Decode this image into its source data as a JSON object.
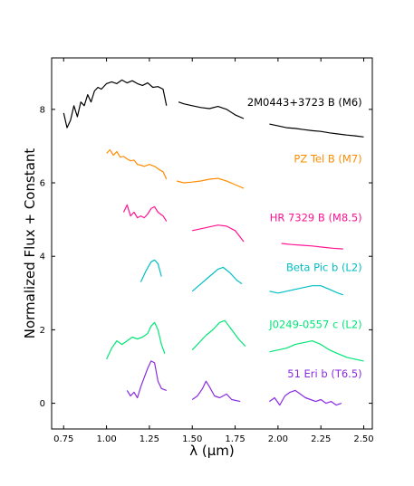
{
  "chart_data": {
    "type": "line",
    "title": "",
    "xlabel": "λ (μm)",
    "ylabel": "Normalized Flux + Constant",
    "xlim": [
      0.68,
      2.55
    ],
    "ylim": [
      -0.7,
      9.4
    ],
    "xticks": [
      "0.75",
      "1.00",
      "1.25",
      "1.50",
      "1.75",
      "2.00",
      "2.25",
      "2.50"
    ],
    "yticks": [
      "0",
      "2",
      "4",
      "6",
      "8"
    ],
    "grid": false,
    "legend": "inline labels at right of each spectrum",
    "series": [
      {
        "name": "2M0443+3723 B (M6)",
        "color": "#000000",
        "label_at": [
          2.49,
          8.1
        ],
        "segments": [
          [
            [
              0.75,
              7.9
            ],
            [
              0.77,
              7.5
            ],
            [
              0.79,
              7.7
            ],
            [
              0.81,
              8.1
            ],
            [
              0.83,
              7.8
            ],
            [
              0.85,
              8.2
            ],
            [
              0.87,
              8.1
            ],
            [
              0.89,
              8.4
            ],
            [
              0.91,
              8.2
            ],
            [
              0.93,
              8.5
            ],
            [
              0.95,
              8.6
            ],
            [
              0.97,
              8.55
            ],
            [
              1.0,
              8.7
            ],
            [
              1.03,
              8.75
            ],
            [
              1.06,
              8.7
            ],
            [
              1.09,
              8.8
            ],
            [
              1.12,
              8.72
            ],
            [
              1.15,
              8.78
            ],
            [
              1.18,
              8.7
            ],
            [
              1.21,
              8.65
            ],
            [
              1.24,
              8.72
            ],
            [
              1.27,
              8.6
            ],
            [
              1.3,
              8.62
            ],
            [
              1.33,
              8.55
            ],
            [
              1.35,
              8.1
            ]
          ],
          [
            [
              1.42,
              8.2
            ],
            [
              1.45,
              8.15
            ],
            [
              1.5,
              8.1
            ],
            [
              1.55,
              8.05
            ],
            [
              1.6,
              8.02
            ],
            [
              1.65,
              8.08
            ],
            [
              1.7,
              8.0
            ],
            [
              1.75,
              7.85
            ],
            [
              1.8,
              7.75
            ]
          ],
          [
            [
              1.95,
              7.6
            ],
            [
              2.0,
              7.55
            ],
            [
              2.05,
              7.5
            ],
            [
              2.1,
              7.48
            ],
            [
              2.15,
              7.45
            ],
            [
              2.2,
              7.42
            ],
            [
              2.25,
              7.4
            ],
            [
              2.3,
              7.36
            ],
            [
              2.35,
              7.33
            ],
            [
              2.4,
              7.3
            ],
            [
              2.45,
              7.28
            ],
            [
              2.5,
              7.25
            ]
          ]
        ]
      },
      {
        "name": "PZ Tel B (M7)",
        "color": "#ff8c00",
        "label_at": [
          2.49,
          6.55
        ],
        "segments": [
          [
            [
              1.0,
              6.8
            ],
            [
              1.02,
              6.9
            ],
            [
              1.04,
              6.75
            ],
            [
              1.06,
              6.85
            ],
            [
              1.08,
              6.7
            ],
            [
              1.1,
              6.72
            ],
            [
              1.12,
              6.65
            ],
            [
              1.14,
              6.6
            ],
            [
              1.16,
              6.62
            ],
            [
              1.18,
              6.5
            ],
            [
              1.2,
              6.48
            ],
            [
              1.22,
              6.45
            ],
            [
              1.25,
              6.5
            ],
            [
              1.28,
              6.45
            ],
            [
              1.31,
              6.35
            ],
            [
              1.33,
              6.3
            ],
            [
              1.35,
              6.1
            ]
          ],
          [
            [
              1.41,
              6.05
            ],
            [
              1.45,
              6.0
            ],
            [
              1.5,
              6.02
            ],
            [
              1.55,
              6.05
            ],
            [
              1.6,
              6.1
            ],
            [
              1.65,
              6.12
            ],
            [
              1.7,
              6.05
            ],
            [
              1.75,
              5.95
            ],
            [
              1.8,
              5.85
            ]
          ]
        ]
      },
      {
        "name": "HR 7329 B (M8.5)",
        "color": "#ff1493",
        "label_at": [
          2.49,
          4.95
        ],
        "segments": [
          [
            [
              1.1,
              5.2
            ],
            [
              1.12,
              5.4
            ],
            [
              1.14,
              5.1
            ],
            [
              1.16,
              5.2
            ],
            [
              1.18,
              5.05
            ],
            [
              1.2,
              5.1
            ],
            [
              1.22,
              5.05
            ],
            [
              1.24,
              5.15
            ],
            [
              1.26,
              5.3
            ],
            [
              1.28,
              5.35
            ],
            [
              1.3,
              5.2
            ],
            [
              1.33,
              5.1
            ],
            [
              1.35,
              4.95
            ]
          ],
          [
            [
              1.5,
              4.7
            ],
            [
              1.55,
              4.75
            ],
            [
              1.6,
              4.8
            ],
            [
              1.65,
              4.85
            ],
            [
              1.7,
              4.82
            ],
            [
              1.75,
              4.7
            ],
            [
              1.8,
              4.4
            ]
          ],
          [
            [
              2.02,
              4.35
            ],
            [
              2.08,
              4.32
            ],
            [
              2.14,
              4.3
            ],
            [
              2.2,
              4.28
            ],
            [
              2.26,
              4.25
            ],
            [
              2.32,
              4.22
            ],
            [
              2.38,
              4.2
            ]
          ]
        ]
      },
      {
        "name": "Beta Pic b (L2)",
        "color": "#00bfc4",
        "label_at": [
          2.49,
          3.6
        ],
        "segments": [
          [
            [
              1.2,
              3.3
            ],
            [
              1.23,
              3.6
            ],
            [
              1.26,
              3.85
            ],
            [
              1.28,
              3.9
            ],
            [
              1.3,
              3.8
            ],
            [
              1.32,
              3.45
            ]
          ],
          [
            [
              1.5,
              3.05
            ],
            [
              1.55,
              3.25
            ],
            [
              1.6,
              3.45
            ],
            [
              1.65,
              3.65
            ],
            [
              1.68,
              3.7
            ],
            [
              1.72,
              3.55
            ],
            [
              1.76,
              3.35
            ],
            [
              1.79,
              3.25
            ]
          ],
          [
            [
              1.95,
              3.05
            ],
            [
              2.0,
              3.0
            ],
            [
              2.05,
              3.05
            ],
            [
              2.1,
              3.1
            ],
            [
              2.15,
              3.15
            ],
            [
              2.2,
              3.2
            ],
            [
              2.25,
              3.2
            ],
            [
              2.3,
              3.1
            ],
            [
              2.35,
              3.0
            ],
            [
              2.38,
              2.95
            ]
          ]
        ]
      },
      {
        "name": "J0249-0557 c (L2)",
        "color": "#00e676",
        "label_at": [
          2.49,
          2.05
        ],
        "segments": [
          [
            [
              1.0,
              1.2
            ],
            [
              1.03,
              1.5
            ],
            [
              1.06,
              1.7
            ],
            [
              1.09,
              1.6
            ],
            [
              1.12,
              1.7
            ],
            [
              1.15,
              1.8
            ],
            [
              1.18,
              1.75
            ],
            [
              1.21,
              1.8
            ],
            [
              1.24,
              1.9
            ],
            [
              1.26,
              2.1
            ],
            [
              1.28,
              2.2
            ],
            [
              1.3,
              2.0
            ],
            [
              1.32,
              1.6
            ],
            [
              1.34,
              1.35
            ]
          ],
          [
            [
              1.5,
              1.45
            ],
            [
              1.54,
              1.65
            ],
            [
              1.58,
              1.85
            ],
            [
              1.62,
              2.0
            ],
            [
              1.66,
              2.2
            ],
            [
              1.69,
              2.25
            ],
            [
              1.73,
              2.0
            ],
            [
              1.77,
              1.75
            ],
            [
              1.81,
              1.55
            ]
          ],
          [
            [
              1.95,
              1.4
            ],
            [
              2.0,
              1.45
            ],
            [
              2.05,
              1.5
            ],
            [
              2.1,
              1.6
            ],
            [
              2.15,
              1.65
            ],
            [
              2.2,
              1.7
            ],
            [
              2.25,
              1.6
            ],
            [
              2.3,
              1.45
            ],
            [
              2.35,
              1.35
            ],
            [
              2.4,
              1.25
            ],
            [
              2.45,
              1.2
            ],
            [
              2.5,
              1.15
            ]
          ]
        ]
      },
      {
        "name": "51 Eri b (T6.5)",
        "color": "#8a2be2",
        "label_at": [
          2.49,
          0.7
        ],
        "segments": [
          [
            [
              1.12,
              0.35
            ],
            [
              1.14,
              0.2
            ],
            [
              1.16,
              0.3
            ],
            [
              1.18,
              0.15
            ],
            [
              1.2,
              0.45
            ],
            [
              1.22,
              0.7
            ],
            [
              1.24,
              0.95
            ],
            [
              1.26,
              1.15
            ],
            [
              1.28,
              1.1
            ],
            [
              1.3,
              0.6
            ],
            [
              1.32,
              0.4
            ],
            [
              1.35,
              0.35
            ]
          ],
          [
            [
              1.5,
              0.1
            ],
            [
              1.53,
              0.2
            ],
            [
              1.56,
              0.4
            ],
            [
              1.58,
              0.6
            ],
            [
              1.6,
              0.45
            ],
            [
              1.63,
              0.2
            ],
            [
              1.66,
              0.15
            ],
            [
              1.7,
              0.25
            ],
            [
              1.73,
              0.1
            ],
            [
              1.78,
              0.05
            ]
          ],
          [
            [
              1.95,
              0.05
            ],
            [
              1.98,
              0.15
            ],
            [
              2.01,
              -0.05
            ],
            [
              2.04,
              0.2
            ],
            [
              2.07,
              0.3
            ],
            [
              2.1,
              0.35
            ],
            [
              2.13,
              0.25
            ],
            [
              2.16,
              0.15
            ],
            [
              2.19,
              0.1
            ],
            [
              2.22,
              0.05
            ],
            [
              2.25,
              0.1
            ],
            [
              2.28,
              0.0
            ],
            [
              2.31,
              0.05
            ],
            [
              2.34,
              -0.05
            ],
            [
              2.37,
              0.0
            ]
          ]
        ]
      }
    ]
  }
}
